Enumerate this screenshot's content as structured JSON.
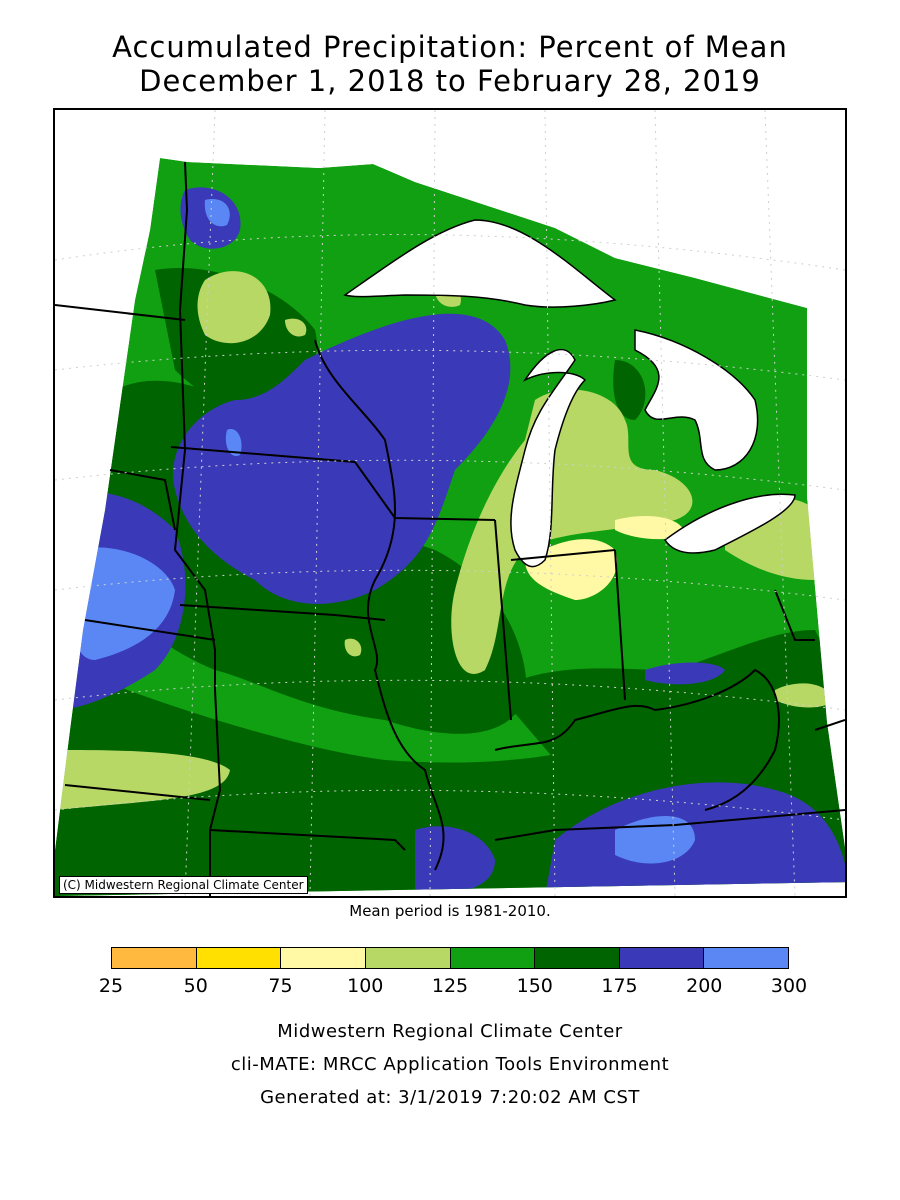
{
  "title": {
    "line1": "Accumulated Precipitation: Percent of Mean",
    "line2": "December 1, 2018 to February 28, 2019"
  },
  "map": {
    "credit": "(C) Midwestern Regional Climate Center",
    "mean_period": "Mean period is 1981-2010."
  },
  "legend": {
    "ticks": [
      "25",
      "50",
      "75",
      "100",
      "125",
      "150",
      "175",
      "200",
      "300"
    ],
    "bins": [
      {
        "from": 25,
        "to": 50,
        "color": "#FFB93E"
      },
      {
        "from": 50,
        "to": 75,
        "color": "#FFE000"
      },
      {
        "from": 75,
        "to": 100,
        "color": "#FFF8A5"
      },
      {
        "from": 100,
        "to": 125,
        "color": "#B8D865"
      },
      {
        "from": 125,
        "to": 150,
        "color": "#11A011"
      },
      {
        "from": 150,
        "to": 175,
        "color": "#006400"
      },
      {
        "from": 175,
        "to": 200,
        "color": "#3A3AB8"
      },
      {
        "from": 200,
        "to": 300,
        "color": "#5B87F5"
      }
    ]
  },
  "footer": {
    "line1": "Midwestern Regional Climate Center",
    "line2": "cli-MATE: MRCC Application Tools Environment",
    "line3": "Generated at: 3/1/2019 7:20:02 AM CST"
  }
}
